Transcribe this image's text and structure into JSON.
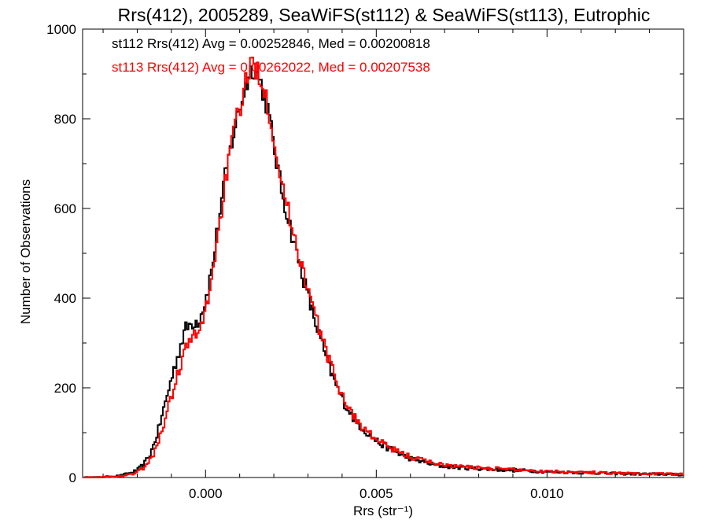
{
  "chart_data": {
    "type": "line",
    "style": "histogram-step",
    "title": "Rrs(412), 2005289, SeaWiFS(st112) & SeaWiFS(st113), Eutrophic",
    "xlabel": "Rrs (str⁻¹)",
    "ylabel": "Number of Observations",
    "xlim": [
      -0.0036,
      0.014
    ],
    "ylim": [
      0,
      1000
    ],
    "xticks": [
      0.0,
      0.005,
      0.01
    ],
    "xtick_labels": [
      "0.000",
      "0.005",
      "0.010"
    ],
    "yticks": [
      0,
      200,
      400,
      600,
      800,
      1000
    ],
    "ytick_labels": [
      "0",
      "200",
      "400",
      "600",
      "800",
      "1000"
    ],
    "grid": false,
    "annotations": [
      {
        "text": "st112 Rrs(412) Avg = 0.00252846, Med = 0.00200818",
        "color": "#000000"
      },
      {
        "text": "st113 Rrs(412) Avg = 0.00262022, Med = 0.00207538",
        "color": "#ff0000"
      }
    ],
    "bin_width": 5e-05,
    "series": [
      {
        "name": "st112",
        "color": "#000000",
        "x": [
          -0.0036,
          -0.003,
          -0.0025,
          -0.0022,
          -0.002,
          -0.0018,
          -0.0016,
          -0.0014,
          -0.0012,
          -0.001,
          -0.0008,
          -0.0006,
          -0.0004,
          -0.0002,
          0.0,
          0.0002,
          0.0004,
          0.0006,
          0.0008,
          0.001,
          0.0012,
          0.0014,
          0.0016,
          0.0018,
          0.002,
          0.0022,
          0.0024,
          0.0026,
          0.0028,
          0.003,
          0.0032,
          0.0034,
          0.0036,
          0.0038,
          0.004,
          0.0042,
          0.0044,
          0.0046,
          0.0048,
          0.005,
          0.0052,
          0.0055,
          0.0058,
          0.0061,
          0.0064,
          0.0067,
          0.007,
          0.0075,
          0.008,
          0.0085,
          0.009,
          0.0095,
          0.01,
          0.0105,
          0.011,
          0.0115,
          0.012,
          0.0125,
          0.013,
          0.0135,
          0.014
        ],
        "y": [
          0,
          1,
          4,
          10,
          16,
          30,
          55,
          100,
          160,
          220,
          275,
          330,
          345,
          350,
          395,
          470,
          580,
          680,
          760,
          825,
          880,
          920,
          885,
          830,
          740,
          650,
          585,
          520,
          465,
          405,
          350,
          300,
          250,
          210,
          175,
          150,
          125,
          110,
          95,
          82,
          72,
          60,
          48,
          40,
          35,
          28,
          25,
          22,
          20,
          18,
          16,
          15,
          13,
          12,
          11,
          10,
          9,
          8,
          8,
          7,
          6
        ]
      },
      {
        "name": "st113",
        "color": "#ff0000",
        "x": [
          -0.0036,
          -0.003,
          -0.0025,
          -0.0022,
          -0.002,
          -0.0018,
          -0.0016,
          -0.0014,
          -0.0012,
          -0.001,
          -0.0008,
          -0.0006,
          -0.0004,
          -0.0002,
          0.0,
          0.0002,
          0.0004,
          0.0006,
          0.0008,
          0.001,
          0.0012,
          0.0014,
          0.0016,
          0.0018,
          0.002,
          0.0022,
          0.0024,
          0.0026,
          0.0028,
          0.003,
          0.0032,
          0.0034,
          0.0036,
          0.0038,
          0.004,
          0.0042,
          0.0044,
          0.0046,
          0.0048,
          0.005,
          0.0052,
          0.0055,
          0.0058,
          0.0061,
          0.0064,
          0.0067,
          0.007,
          0.0075,
          0.008,
          0.0085,
          0.009,
          0.0095,
          0.01,
          0.0105,
          0.011,
          0.0115,
          0.012,
          0.0125,
          0.013,
          0.0135,
          0.014
        ],
        "y": [
          0,
          1,
          3,
          7,
          12,
          22,
          40,
          75,
          125,
          180,
          235,
          285,
          310,
          320,
          370,
          455,
          560,
          670,
          755,
          825,
          885,
          925,
          900,
          845,
          760,
          670,
          600,
          540,
          480,
          420,
          365,
          315,
          265,
          222,
          185,
          155,
          130,
          112,
          98,
          85,
          75,
          62,
          52,
          44,
          38,
          32,
          28,
          24,
          22,
          20,
          18,
          16,
          14,
          13,
          12,
          11,
          10,
          9,
          8,
          8,
          7
        ]
      }
    ]
  }
}
